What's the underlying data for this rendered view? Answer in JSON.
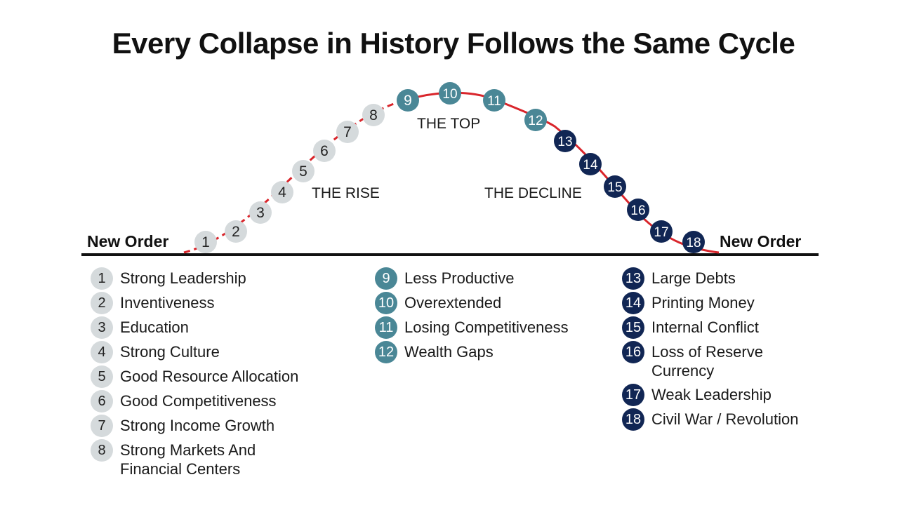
{
  "title": "Every Collapse in History Follows the Same Cycle",
  "phases": {
    "rise": "THE RISE",
    "top": "THE TOP",
    "decline": "THE DECLINE"
  },
  "new_order_left": "New Order",
  "new_order_right": "New Order",
  "colors": {
    "rise_fill": "#d5dadc",
    "rise_text": "#222222",
    "top_fill": "#4a8796",
    "top_text": "#ffffff",
    "decline_fill": "#112654",
    "decline_text": "#ffffff",
    "curve": "#d9252b",
    "baseline": "#111111"
  },
  "stages": [
    {
      "n": "1",
      "label": "Strong Leadership",
      "group": "rise"
    },
    {
      "n": "2",
      "label": "Inventiveness",
      "group": "rise"
    },
    {
      "n": "3",
      "label": "Education",
      "group": "rise"
    },
    {
      "n": "4",
      "label": "Strong Culture",
      "group": "rise"
    },
    {
      "n": "5",
      "label": "Good Resource Allocation",
      "group": "rise"
    },
    {
      "n": "6",
      "label": "Good Competitiveness",
      "group": "rise"
    },
    {
      "n": "7",
      "label": "Strong Income Growth",
      "group": "rise"
    },
    {
      "n": "8",
      "label": "Strong Markets And Financial Centers",
      "group": "rise"
    },
    {
      "n": "9",
      "label": "Less Productive",
      "group": "top"
    },
    {
      "n": "10",
      "label": "Overextended",
      "group": "top"
    },
    {
      "n": "11",
      "label": "Losing Competitiveness",
      "group": "top"
    },
    {
      "n": "12",
      "label": "Wealth Gaps",
      "group": "top"
    },
    {
      "n": "13",
      "label": "Large Debts",
      "group": "decline"
    },
    {
      "n": "14",
      "label": "Printing Money",
      "group": "decline"
    },
    {
      "n": "15",
      "label": "Internal Conflict",
      "group": "decline"
    },
    {
      "n": "16",
      "label": "Loss of Reserve Currency",
      "group": "decline"
    },
    {
      "n": "17",
      "label": "Weak Leadership",
      "group": "decline"
    },
    {
      "n": "18",
      "label": "Civil War / Revolution",
      "group": "decline"
    }
  ]
}
